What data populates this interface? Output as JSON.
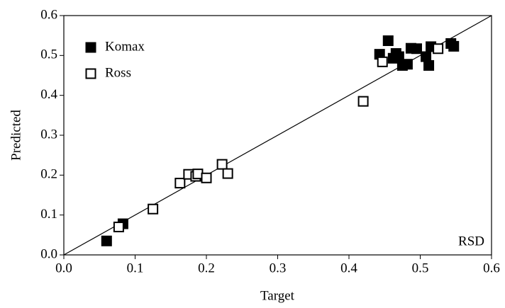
{
  "chart_data": {
    "type": "scatter",
    "xlabel": "Target",
    "ylabel": "Predicted",
    "annotation": "RSD",
    "xlim": [
      0,
      0.6
    ],
    "ylim": [
      0,
      0.6
    ],
    "xticks": [
      {
        "value": 0,
        "label": "0.0"
      },
      0.1,
      0.2,
      0.3,
      0.4,
      0.5,
      0.6
    ],
    "yticks": [
      {
        "value": 0,
        "label": "0.0"
      },
      0.1,
      0.2,
      0.3,
      0.4,
      0.5,
      0.6
    ],
    "legend": "upper-left",
    "identity_line": true,
    "series": [
      {
        "name": "Komax",
        "color": "#000000",
        "marker": "filled",
        "x": [
          0.06,
          0.083,
          0.443,
          0.455,
          0.462,
          0.466,
          0.47,
          0.475,
          0.482,
          0.487,
          0.495,
          0.508,
          0.512,
          0.515,
          0.543,
          0.547
        ],
        "values": [
          0.035,
          0.078,
          0.503,
          0.537,
          0.493,
          0.505,
          0.497,
          0.475,
          0.478,
          0.518,
          0.517,
          0.497,
          0.475,
          0.522,
          0.53,
          0.523
        ]
      },
      {
        "name": "Ross",
        "color": "#000000",
        "marker": "open",
        "x": [
          0.077,
          0.125,
          0.163,
          0.175,
          0.185,
          0.188,
          0.2,
          0.222,
          0.23,
          0.42,
          0.447,
          0.525
        ],
        "values": [
          0.07,
          0.115,
          0.18,
          0.202,
          0.197,
          0.203,
          0.193,
          0.227,
          0.204,
          0.385,
          0.484,
          0.517
        ]
      }
    ]
  }
}
